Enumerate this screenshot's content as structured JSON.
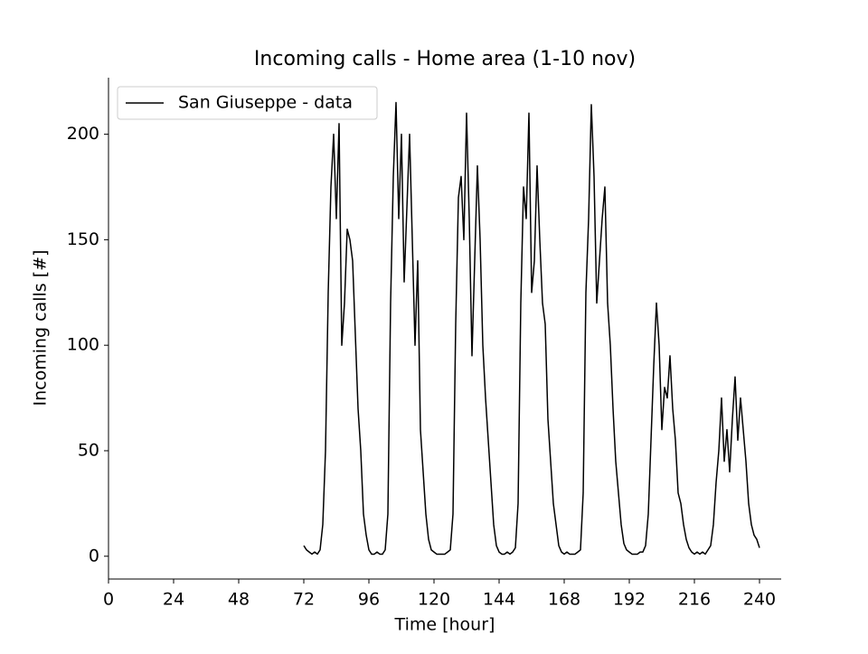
{
  "chart_data": {
    "type": "line",
    "title": "Incoming calls - Home area (1-10 nov)",
    "xlabel": "Time [hour]",
    "ylabel": "Incoming calls [#]",
    "x": [
      72,
      73,
      74,
      75,
      76,
      77,
      78,
      79,
      80,
      81,
      82,
      83,
      84,
      85,
      86,
      87,
      88,
      89,
      90,
      91,
      92,
      93,
      94,
      95,
      96,
      97,
      98,
      99,
      100,
      101,
      102,
      103,
      104,
      105,
      106,
      107,
      108,
      109,
      110,
      111,
      112,
      113,
      114,
      115,
      116,
      117,
      118,
      119,
      120,
      121,
      122,
      123,
      124,
      125,
      126,
      127,
      128,
      129,
      130,
      131,
      132,
      133,
      134,
      135,
      136,
      137,
      138,
      139,
      140,
      141,
      142,
      143,
      144,
      145,
      146,
      147,
      148,
      149,
      150,
      151,
      152,
      153,
      154,
      155,
      156,
      157,
      158,
      159,
      160,
      161,
      162,
      163,
      164,
      165,
      166,
      167,
      168,
      169,
      170,
      171,
      172,
      173,
      174,
      175,
      176,
      177,
      178,
      179,
      180,
      181,
      182,
      183,
      184,
      185,
      186,
      187,
      188,
      189,
      190,
      191,
      192,
      193,
      194,
      195,
      196,
      197,
      198,
      199,
      200,
      201,
      202,
      203,
      204,
      205,
      206,
      207,
      208,
      209,
      210,
      211,
      212,
      213,
      214,
      215,
      216,
      217,
      218,
      219,
      220,
      221,
      222,
      223,
      224,
      225,
      226,
      227,
      228,
      229,
      230,
      231,
      232,
      233,
      234,
      235,
      236,
      237,
      238,
      239,
      240
    ],
    "series": [
      {
        "name": "San Giuseppe - data",
        "color": "#000000",
        "values": [
          5,
          3,
          2,
          1,
          2,
          1,
          3,
          15,
          50,
          125,
          175,
          200,
          160,
          205,
          100,
          120,
          155,
          150,
          140,
          105,
          70,
          50,
          20,
          10,
          3,
          1,
          1,
          2,
          1,
          1,
          3,
          20,
          120,
          180,
          215,
          160,
          200,
          130,
          165,
          200,
          150,
          100,
          140,
          60,
          40,
          20,
          8,
          3,
          2,
          1,
          1,
          1,
          1,
          2,
          3,
          20,
          110,
          170,
          180,
          150,
          210,
          160,
          95,
          140,
          185,
          150,
          100,
          75,
          55,
          35,
          15,
          5,
          2,
          1,
          1,
          2,
          1,
          2,
          4,
          25,
          120,
          175,
          160,
          210,
          125,
          140,
          185,
          150,
          120,
          110,
          65,
          45,
          25,
          15,
          5,
          2,
          1,
          2,
          1,
          1,
          1,
          2,
          3,
          30,
          125,
          160,
          214,
          180,
          120,
          140,
          160,
          175,
          120,
          100,
          70,
          45,
          30,
          15,
          6,
          3,
          2,
          1,
          1,
          1,
          2,
          2,
          5,
          20,
          55,
          90,
          120,
          100,
          60,
          80,
          75,
          95,
          70,
          55,
          30,
          25,
          15,
          8,
          4,
          2,
          1,
          2,
          1,
          2,
          1,
          3,
          5,
          15,
          35,
          50,
          75,
          45,
          60,
          40,
          65,
          85,
          55,
          75,
          60,
          45,
          25,
          15,
          10,
          8,
          4
        ]
      }
    ],
    "xlim": [
      0,
      248
    ],
    "ylim": [
      -10.8,
      226.8
    ],
    "xticks": [
      0,
      24,
      48,
      72,
      96,
      120,
      144,
      168,
      192,
      216,
      240
    ],
    "yticks": [
      0,
      50,
      100,
      150,
      200
    ],
    "legend": "upper left",
    "grid": false
  }
}
